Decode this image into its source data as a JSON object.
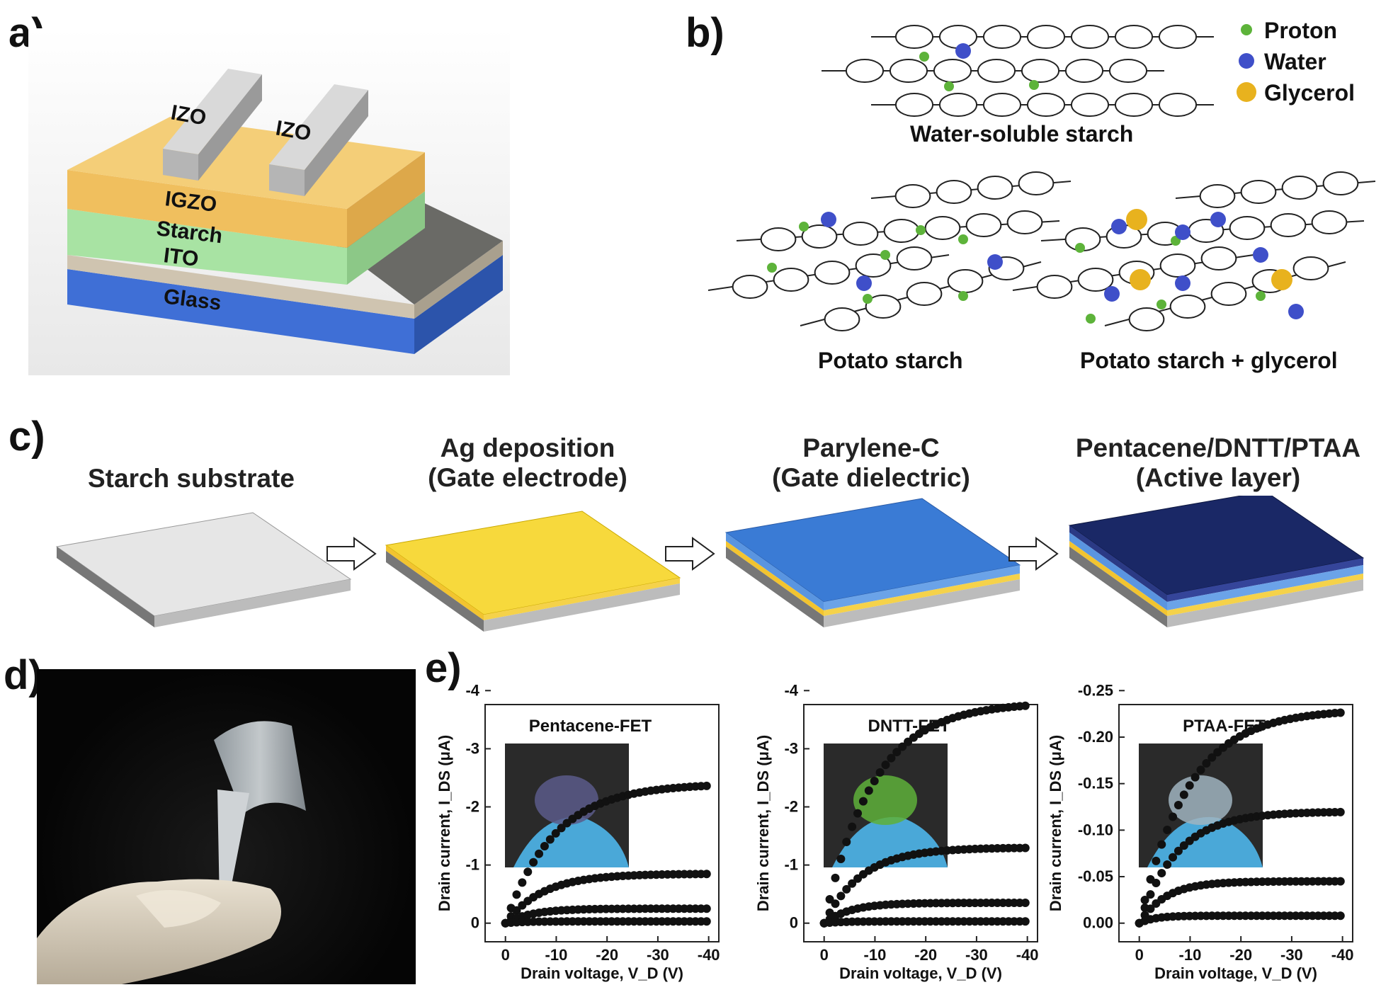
{
  "panels": {
    "a": {
      "letter": "a)",
      "layers": [
        "IZO",
        "IZO",
        "IGZO",
        "Starch",
        "ITO",
        "Glass"
      ],
      "colors": {
        "igzo": "#f2c66a",
        "starch": "#a8e3a3",
        "ito": "#cfc4b0",
        "glass": "#3f6fd6",
        "izo": "#b8b8b8"
      }
    },
    "b": {
      "letter": "b)",
      "legend": [
        {
          "label": "Proton",
          "color": "#5db33a"
        },
        {
          "label": "Water",
          "color": "#3f4fc9"
        },
        {
          "label": "Glycerol",
          "color": "#e8b21e"
        }
      ],
      "captions": [
        "Water-soluble starch",
        "Potato starch",
        "Potato starch + glycerol"
      ]
    },
    "c": {
      "letter": "c)",
      "steps": [
        {
          "title1": "Starch substrate",
          "title2": "",
          "top_color": "#e6e6e6"
        },
        {
          "title1": "Ag deposition",
          "title2": "(Gate electrode)",
          "top_color": "#f7d93c"
        },
        {
          "title1": "Parylene-C",
          "title2": "(Gate dielectric)",
          "top_color": "#3a7bd5"
        },
        {
          "title1": "Pentacene/DNTT/PTAA",
          "title2": "(Active layer)",
          "top_color": "#1a2866"
        }
      ]
    },
    "d": {
      "letter": "d)"
    },
    "e": {
      "letter": "e)"
    }
  },
  "chart_data": [
    {
      "type": "scatter",
      "title": "Pentacene-FET",
      "xlabel": "Drain voltage, V_D (V)",
      "ylabel": "Drain current, I_DS (μA)",
      "xlim": [
        0,
        -40
      ],
      "ylim": [
        0,
        -4
      ],
      "xticks": [
        "0",
        "-10",
        "-20",
        "-30",
        "-40"
      ],
      "yticks": [
        "0",
        "-1",
        "-2",
        "-3",
        "-4"
      ],
      "series": [
        {
          "sat": -2.4
        },
        {
          "sat": -0.85
        },
        {
          "sat": -0.25
        },
        {
          "sat": -0.03
        }
      ]
    },
    {
      "type": "scatter",
      "title": "DNTT-FET",
      "xlabel": "Drain voltage, V_D (V)",
      "ylabel": "Drain current, I_DS (μA)",
      "xlim": [
        0,
        -40
      ],
      "ylim": [
        0,
        -4
      ],
      "xticks": [
        "0",
        "-10",
        "-20",
        "-30",
        "-40"
      ],
      "yticks": [
        "0",
        "-1",
        "-2",
        "-3",
        "-4"
      ],
      "series": [
        {
          "sat": -3.8
        },
        {
          "sat": -1.3
        },
        {
          "sat": -0.35
        },
        {
          "sat": -0.03
        }
      ]
    },
    {
      "type": "scatter",
      "title": "PTAA-FET",
      "xlabel": "Drain voltage, V_D (V)",
      "ylabel": "Drain current, I_DS (μA)",
      "xlim": [
        0,
        -40
      ],
      "ylim": [
        0,
        -0.25
      ],
      "xticks": [
        "0",
        "-10",
        "-20",
        "-30",
        "-40"
      ],
      "yticks": [
        "0.00",
        "-0.05",
        "-0.10",
        "-0.15",
        "-0.20",
        "-0.25"
      ],
      "series": [
        {
          "sat": -0.23
        },
        {
          "sat": -0.12
        },
        {
          "sat": -0.045
        },
        {
          "sat": -0.008
        }
      ]
    }
  ]
}
